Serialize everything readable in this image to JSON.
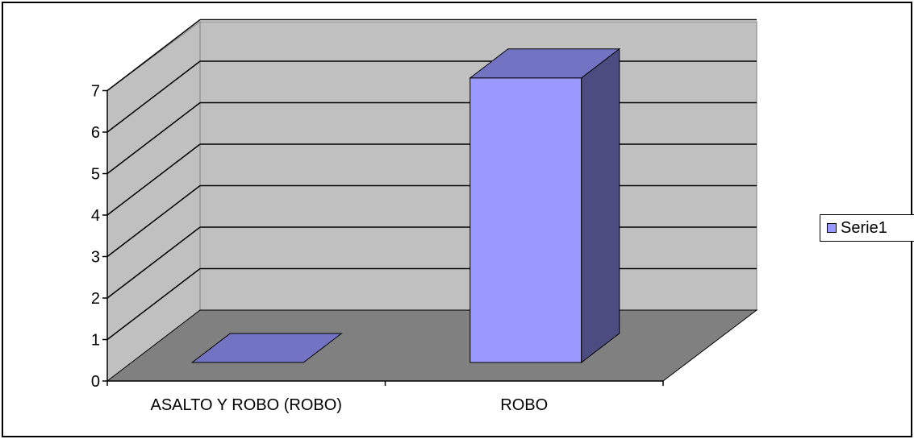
{
  "chart_data": {
    "type": "bar",
    "style": "3d-column",
    "categories": [
      "ASALTO Y ROBO (ROBO)",
      "ROBO"
    ],
    "series": [
      {
        "name": "Serie1",
        "values": [
          0,
          7
        ]
      }
    ],
    "yticks": [
      "0",
      "1",
      "2",
      "3",
      "4",
      "5",
      "6",
      "7"
    ],
    "ylim": [
      0,
      7
    ],
    "grid": true,
    "legend": "right"
  },
  "colors": {
    "wall": "#c0c0c0",
    "floor": "#808080",
    "bar_front": "#9999ff",
    "bar_top": "#7373c4",
    "bar_side": "#4c4c80"
  }
}
